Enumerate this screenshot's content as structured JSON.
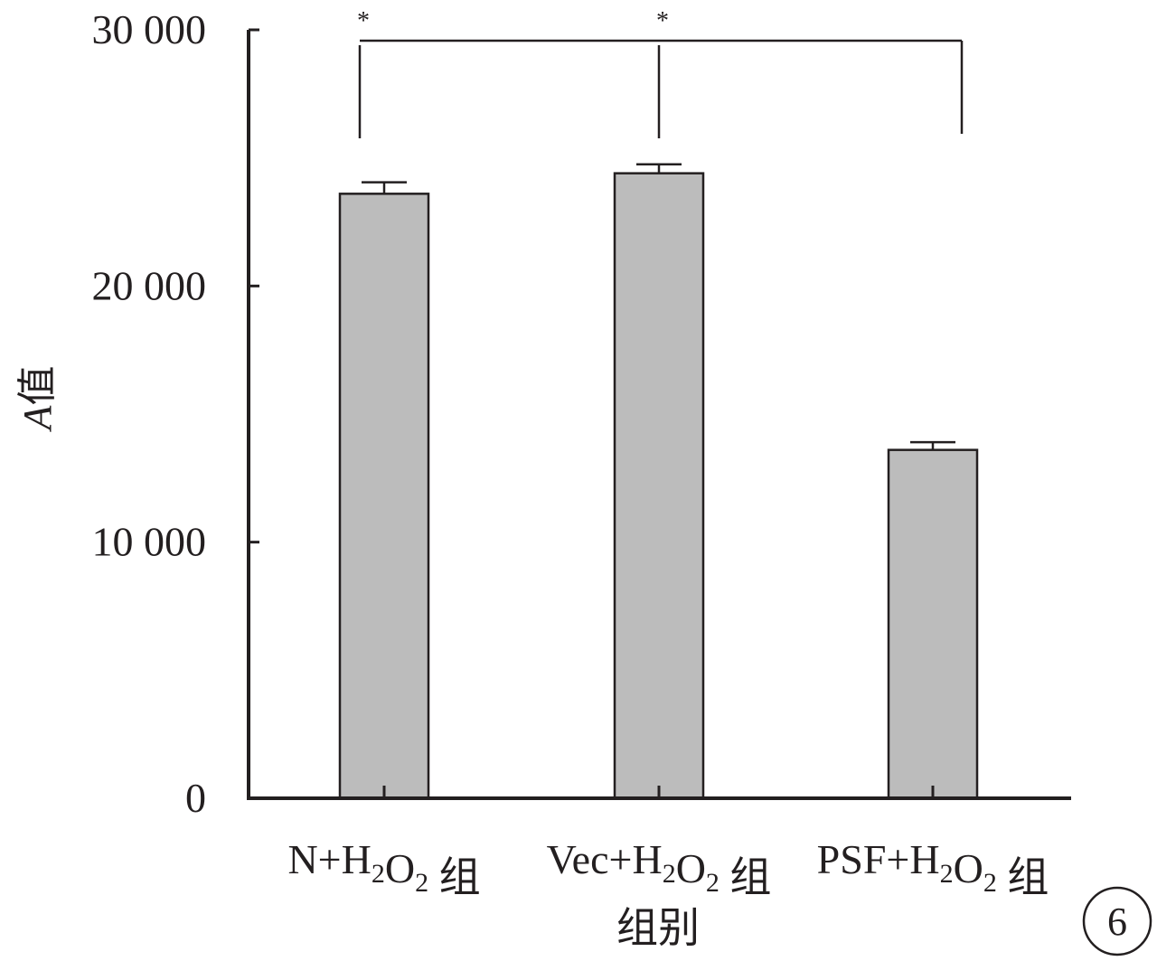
{
  "chart_data": {
    "type": "bar",
    "categories": [
      "N+H₂O₂ 组",
      "Vec+H₂O₂ 组",
      "PSF+H₂O₂ 组"
    ],
    "values": [
      23600,
      24400,
      13600
    ],
    "errors": [
      450,
      350,
      300
    ],
    "ylabel_italic": "A",
    "ylabel_rest": "值",
    "xlabel": "组别",
    "ylim": [
      0,
      30000
    ],
    "yticks": [
      0,
      10000,
      20000,
      30000
    ],
    "ytick_labels": [
      "0",
      "10 000",
      "20 000",
      "30 000"
    ],
    "significance": [
      {
        "from": 0,
        "to": 2,
        "label": "*"
      },
      {
        "from": 1,
        "to": 2,
        "label": "*"
      }
    ],
    "bar_color": "#bcbcbc",
    "line_color": "#231f20",
    "panel_label": "6"
  }
}
